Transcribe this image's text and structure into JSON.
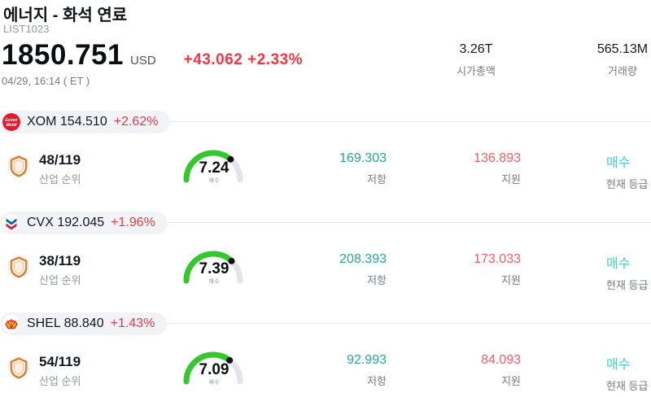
{
  "header": {
    "title": "에너지 - 화석 연료",
    "list_id": "LIST1023",
    "price": "1850.751",
    "currency": "USD",
    "change": "+43.062 +2.33%",
    "timestamp": "04/29, 16:14 ( ET )",
    "market_cap": {
      "value": "3.26T",
      "label": "시가총액"
    },
    "volume": {
      "value": "565.13M",
      "label": "거래량"
    }
  },
  "rows": [
    {
      "logo": "exxon-mobil-logo",
      "ticker_price": "XOM 154.510",
      "change_pct": "+2.62%",
      "rank": "48/119",
      "rank_label": "산업 순위",
      "gauge_value": "7.24",
      "gauge_numeric": 7.24,
      "gauge_label": "매수",
      "resistance": "169.303",
      "resistance_label": "저항",
      "support": "136.893",
      "support_label": "지원",
      "rating": "매수",
      "rating_label": "현재 등급"
    },
    {
      "logo": "chevron-logo",
      "ticker_price": "CVX 192.045",
      "change_pct": "+1.96%",
      "rank": "38/119",
      "rank_label": "산업 순위",
      "gauge_value": "7.39",
      "gauge_numeric": 7.39,
      "gauge_label": "매수",
      "resistance": "208.393",
      "resistance_label": "저항",
      "support": "173.033",
      "support_label": "지원",
      "rating": "매수",
      "rating_label": "현재 등급"
    },
    {
      "logo": "shell-logo",
      "ticker_price": "SHEL 88.840",
      "change_pct": "+1.43%",
      "rank": "54/119",
      "rank_label": "산업 순위",
      "gauge_value": "7.09",
      "gauge_numeric": 7.09,
      "gauge_label": "매수",
      "resistance": "92.993",
      "resistance_label": "저항",
      "support": "84.093",
      "support_label": "지원",
      "rating": "매수",
      "rating_label": "현재 등급"
    }
  ],
  "colors": {
    "up_red": "#f23645",
    "resistance_teal": "#26a69a",
    "support_red": "#f65e62",
    "rating_cyan": "#45d1c5",
    "gauge_green": "#33c82c",
    "gauge_track": "#e1e4ec",
    "label_gray": "#787b86"
  }
}
